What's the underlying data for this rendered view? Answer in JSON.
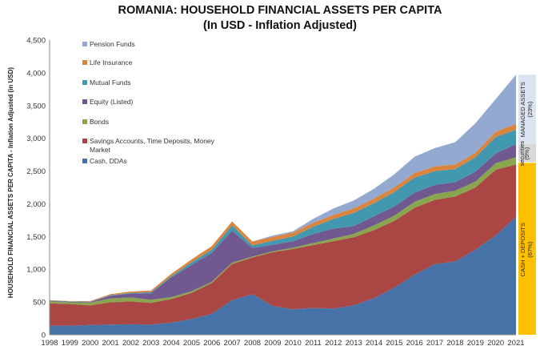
{
  "chart_data": {
    "type": "area",
    "title": "ROMANIA: HOUSEHOLD FINANCIAL ASSETS PER CAPITA",
    "subtitle": "(In USD - Inflation Adjusted)",
    "ylabel": "HOUSEHOLD FINANCIAL ASSETS PER CAPITA - Inflation Adjusted (in USD)",
    "xlabel": "",
    "ylim": [
      0,
      4500
    ],
    "yticks": [
      "0",
      "500",
      "1,000",
      "1,500",
      "2,000",
      "2,500",
      "3,000",
      "3,500",
      "4,000",
      "4,500"
    ],
    "x": [
      "1998",
      "1999",
      "2000",
      "2001",
      "2002",
      "2003",
      "2004",
      "2005",
      "2006",
      "2007",
      "2008",
      "2009",
      "2010",
      "2011",
      "2012",
      "2013",
      "2014",
      "2015",
      "2016",
      "2017",
      "2018",
      "2019",
      "2020",
      "2021"
    ],
    "legend_position": "top-left",
    "series": [
      {
        "name": "Cash, DDAs",
        "color": "#4672a8",
        "values": [
          140,
          140,
          150,
          155,
          160,
          155,
          185,
          240,
          320,
          530,
          620,
          440,
          390,
          410,
          400,
          450,
          560,
          720,
          920,
          1080,
          1120,
          1300,
          1520,
          1800
        ]
      },
      {
        "name": "Savings Accounts, Time Deposits, Money Market",
        "color": "#aa4643",
        "values": [
          340,
          330,
          300,
          340,
          350,
          330,
          360,
          400,
          470,
          550,
          560,
          820,
          920,
          960,
          1030,
          1040,
          1040,
          1020,
          1020,
          980,
          990,
          950,
          1000,
          800
        ]
      },
      {
        "name": "Bonds",
        "color": "#89a54e",
        "values": [
          30,
          25,
          40,
          60,
          60,
          50,
          30,
          25,
          20,
          20,
          15,
          15,
          20,
          30,
          40,
          50,
          70,
          80,
          90,
          90,
          90,
          90,
          100,
          110
        ]
      },
      {
        "name": "Equity (Listed)",
        "color": "#71588f",
        "values": [
          10,
          10,
          10,
          40,
          60,
          100,
          300,
          400,
          440,
          490,
          130,
          100,
          100,
          140,
          150,
          120,
          140,
          140,
          140,
          140,
          130,
          150,
          150,
          200
        ]
      },
      {
        "name": "Mutual Funds",
        "color": "#4198af",
        "values": [
          5,
          5,
          5,
          10,
          10,
          15,
          20,
          40,
          50,
          80,
          40,
          60,
          70,
          110,
          150,
          200,
          200,
          220,
          230,
          210,
          200,
          220,
          250,
          220
        ]
      },
      {
        "name": "Life Insurance",
        "color": "#db843d",
        "values": [
          5,
          5,
          10,
          15,
          20,
          25,
          35,
          45,
          55,
          60,
          60,
          60,
          60,
          60,
          60,
          70,
          70,
          70,
          70,
          70,
          70,
          70,
          80,
          90
        ]
      },
      {
        "name": "Pension Funds",
        "color": "#93a9cf",
        "values": [
          0,
          0,
          0,
          0,
          0,
          0,
          0,
          0,
          0,
          0,
          0,
          20,
          20,
          60,
          100,
          120,
          150,
          200,
          250,
          280,
          340,
          450,
          500,
          750
        ]
      }
    ],
    "side_labels": {
      "managed": "MANAGED ASSETS",
      "managed_pct": "(23%)",
      "securities": "securities",
      "securities_pct": "(5%)",
      "cash": "CASH + DEPOSITS",
      "cash_pct": "(67%)"
    },
    "side_colors": {
      "managed": "#dde4f1",
      "securities": "#d8d8d8",
      "cash": "#ffc000"
    }
  }
}
